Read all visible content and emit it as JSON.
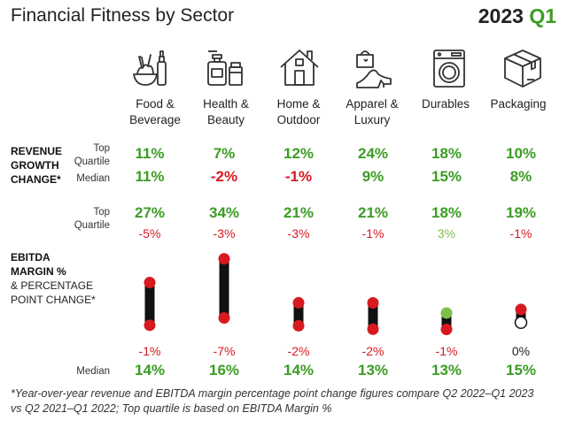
{
  "title": "Financial Fitness by Sector",
  "period_year": "2023",
  "period_quarter": "Q1",
  "colors": {
    "positive": "#3a9d23",
    "negative": "#d71920",
    "light_positive": "#7cc04b",
    "bar": "#111111"
  },
  "sectors": [
    {
      "line1": "Food &",
      "line2": "Beverage",
      "icon": "food-beverage-icon"
    },
    {
      "line1": "Health &",
      "line2": "Beauty",
      "icon": "health-beauty-icon"
    },
    {
      "line1": "Home &",
      "line2": "Outdoor",
      "icon": "home-outdoor-icon"
    },
    {
      "line1": "Apparel &",
      "line2": "Luxury",
      "icon": "apparel-luxury-icon"
    },
    {
      "line1": "Durables",
      "line2": "",
      "icon": "durables-icon"
    },
    {
      "line1": "Packaging",
      "line2": "",
      "icon": "packaging-icon"
    }
  ],
  "labels": {
    "revenue_l1": "REVENUE",
    "revenue_l2": "GROWTH",
    "revenue_l3": "CHANGE*",
    "top_quartile_l1": "Top",
    "top_quartile_l2": "Quartile",
    "median": "Median",
    "ebitda_l1": "EBITDA",
    "ebitda_l2": "MARGIN %",
    "ebitda_l3": "& PERCENTAGE",
    "ebitda_l4": "POINT CHANGE*"
  },
  "footnote_l1": "*Year-over-year revenue and EBITDA margin percentage point change figures compare Q2 2022–Q1 2023",
  "footnote_l2": "vs Q2 2021–Q1 2022; Top quartile is based on EBITDA Margin %",
  "chart_data": {
    "type": "table",
    "title": "Financial Fitness by Sector",
    "categories": [
      "Food & Beverage",
      "Health & Beauty",
      "Home & Outdoor",
      "Apparel & Luxury",
      "Durables",
      "Packaging"
    ],
    "revenue_growth": {
      "top_quartile": [
        "11%",
        "7%",
        "12%",
        "24%",
        "18%",
        "10%"
      ],
      "top_quartile_values": [
        11,
        7,
        12,
        24,
        18,
        10
      ],
      "median": [
        "11%",
        "-2%",
        "-1%",
        "9%",
        "15%",
        "8%"
      ],
      "median_values": [
        11,
        -2,
        -1,
        9,
        15,
        8
      ]
    },
    "ebitda_margin": {
      "top_quartile": [
        "27%",
        "34%",
        "21%",
        "21%",
        "18%",
        "19%"
      ],
      "top_quartile_values": [
        27,
        34,
        21,
        21,
        18,
        19
      ],
      "top_quartile_change": [
        "-5%",
        "-3%",
        "-3%",
        "-1%",
        "3%",
        "-1%"
      ],
      "top_quartile_change_values": [
        -5,
        -3,
        -3,
        -1,
        3,
        -1
      ],
      "median_change": [
        "-1%",
        "-7%",
        "-2%",
        "-2%",
        "-1%",
        "0%"
      ],
      "median_change_values": [
        -1,
        -7,
        -2,
        -2,
        -1,
        0
      ],
      "median": [
        "14%",
        "16%",
        "14%",
        "13%",
        "13%",
        "15%"
      ],
      "median_values": [
        14,
        16,
        14,
        13,
        13,
        15
      ]
    }
  }
}
